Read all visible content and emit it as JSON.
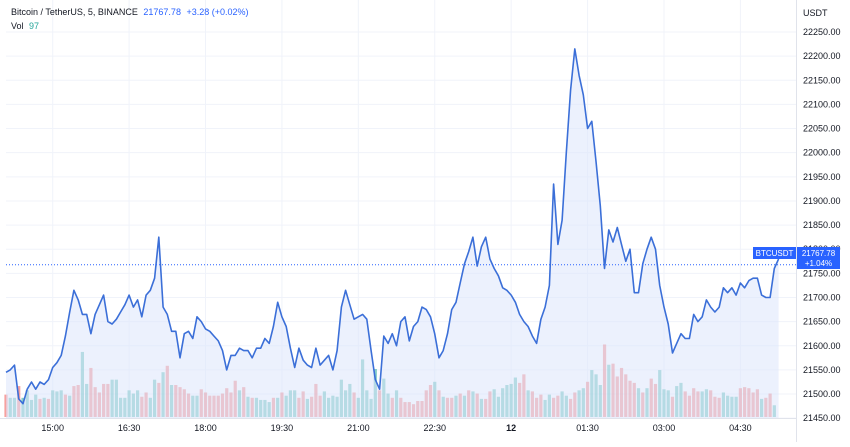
{
  "legend": {
    "symbol": "Bitcoin / TetherUS, 5, BINANCE",
    "last": "21767.78",
    "change": "+3.28 (+0.02%)",
    "vol_label": "Vol",
    "vol_value": "97"
  },
  "price_tag": {
    "symbol": "BTCUSDT",
    "price": "21767.78",
    "change": "+1.04%"
  },
  "colors": {
    "line": "#3b6fd8",
    "fill": "#dce5fb",
    "up": "#26a69a",
    "down": "#ef5350",
    "tag": "#2962ff",
    "grid": "#f0f3fa"
  },
  "chart_data": {
    "type": "line",
    "yunit": "USDT",
    "ylim": [
      21420,
      22285
    ],
    "yticks": [
      21450,
      21500,
      21550,
      21600,
      21650,
      21700,
      21750,
      21800,
      21850,
      21900,
      21950,
      22000,
      22050,
      22100,
      22150,
      22200,
      22250
    ],
    "xticks": [
      "15:00",
      "16:30",
      "18:00",
      "19:30",
      "21:00",
      "22:30",
      "12",
      "01:30",
      "03:00",
      "04:30"
    ],
    "xtick_index": [
      11,
      29,
      47,
      65,
      83,
      101,
      119,
      137,
      155,
      173
    ],
    "price": [
      21545,
      21550,
      21560,
      21490,
      21480,
      21510,
      21525,
      21510,
      21525,
      21520,
      21530,
      21555,
      21565,
      21580,
      21620,
      21670,
      21715,
      21695,
      21665,
      21665,
      21625,
      21665,
      21685,
      21705,
      21650,
      21645,
      21655,
      21670,
      21685,
      21705,
      21680,
      21695,
      21660,
      21705,
      21715,
      21740,
      21825,
      21680,
      21665,
      21630,
      21630,
      21575,
      21625,
      21630,
      21615,
      21660,
      21650,
      21635,
      21630,
      21620,
      21610,
      21590,
      21550,
      21580,
      21580,
      21595,
      21590,
      21590,
      21575,
      21595,
      21595,
      21615,
      21605,
      21640,
      21690,
      21660,
      21640,
      21595,
      21555,
      21595,
      21570,
      21560,
      21555,
      21595,
      21560,
      21570,
      21580,
      21550,
      21590,
      21680,
      21715,
      21685,
      21655,
      21660,
      21665,
      21655,
      21590,
      21530,
      21510,
      21620,
      21605,
      21625,
      21600,
      21650,
      21660,
      21610,
      21640,
      21650,
      21680,
      21675,
      21660,
      21625,
      21575,
      21590,
      21625,
      21675,
      21690,
      21730,
      21770,
      21795,
      21825,
      21765,
      21805,
      21825,
      21780,
      21760,
      21745,
      21720,
      21715,
      21705,
      21690,
      21665,
      21650,
      21640,
      21620,
      21605,
      21655,
      21680,
      21725,
      21935,
      21810,
      21860,
      22000,
      22130,
      22215,
      22160,
      22120,
      22050,
      22065,
      21980,
      21890,
      21760,
      21840,
      21815,
      21845,
      21810,
      21775,
      21800,
      21710,
      21710,
      21770,
      21800,
      21825,
      21800,
      21725,
      21680,
      21645,
      21585,
      21605,
      21625,
      21615,
      21615,
      21665,
      21650,
      21660,
      21695,
      21680,
      21670,
      21680,
      21720,
      21710,
      21720,
      21705,
      21730,
      21720,
      21735,
      21740,
      21740,
      21705,
      21700,
      21700,
      21760,
      21780
    ],
    "volume": [
      {
        "v": 21,
        "up": false
      },
      {
        "v": 18,
        "up": true
      },
      {
        "v": 18,
        "up": true
      },
      {
        "v": 29,
        "up": false
      },
      {
        "v": 18,
        "up": true
      },
      {
        "v": 25,
        "up": true
      },
      {
        "v": 16,
        "up": true
      },
      {
        "v": 21,
        "up": true
      },
      {
        "v": 17,
        "up": false
      },
      {
        "v": 18,
        "up": true
      },
      {
        "v": 17,
        "up": false
      },
      {
        "v": 25,
        "up": true
      },
      {
        "v": 24,
        "up": true
      },
      {
        "v": 25,
        "up": true
      },
      {
        "v": 21,
        "up": false
      },
      {
        "v": 20,
        "up": true
      },
      {
        "v": 29,
        "up": false
      },
      {
        "v": 30,
        "up": false
      },
      {
        "v": 61,
        "up": true
      },
      {
        "v": 31,
        "up": true
      },
      {
        "v": 46,
        "up": false
      },
      {
        "v": 28,
        "up": false
      },
      {
        "v": 23,
        "up": false
      },
      {
        "v": 31,
        "up": false
      },
      {
        "v": 31,
        "up": false
      },
      {
        "v": 35,
        "up": true
      },
      {
        "v": 35,
        "up": true
      },
      {
        "v": 18,
        "up": true
      },
      {
        "v": 18,
        "up": true
      },
      {
        "v": 25,
        "up": true
      },
      {
        "v": 22,
        "up": true
      },
      {
        "v": 25,
        "up": true
      },
      {
        "v": 19,
        "up": false
      },
      {
        "v": 23,
        "up": false
      },
      {
        "v": 18,
        "up": true
      },
      {
        "v": 35,
        "up": true
      },
      {
        "v": 32,
        "up": false
      },
      {
        "v": 42,
        "up": true
      },
      {
        "v": 48,
        "up": false
      },
      {
        "v": 30,
        "up": true
      },
      {
        "v": 30,
        "up": false
      },
      {
        "v": 28,
        "up": false
      },
      {
        "v": 26,
        "up": false
      },
      {
        "v": 22,
        "up": false
      },
      {
        "v": 20,
        "up": true
      },
      {
        "v": 20,
        "up": true
      },
      {
        "v": 26,
        "up": false
      },
      {
        "v": 23,
        "up": false
      },
      {
        "v": 20,
        "up": false
      },
      {
        "v": 20,
        "up": false
      },
      {
        "v": 20,
        "up": false
      },
      {
        "v": 22,
        "up": false
      },
      {
        "v": 27,
        "up": false
      },
      {
        "v": 23,
        "up": false
      },
      {
        "v": 34,
        "up": false
      },
      {
        "v": 25,
        "up": true
      },
      {
        "v": 28,
        "up": false
      },
      {
        "v": 19,
        "up": true
      },
      {
        "v": 18,
        "up": false
      },
      {
        "v": 18,
        "up": true
      },
      {
        "v": 16,
        "up": true
      },
      {
        "v": 16,
        "up": true
      },
      {
        "v": 14,
        "up": true
      },
      {
        "v": 18,
        "up": false
      },
      {
        "v": 18,
        "up": true
      },
      {
        "v": 23,
        "up": false
      },
      {
        "v": 20,
        "up": true
      },
      {
        "v": 25,
        "up": true
      },
      {
        "v": 25,
        "up": true
      },
      {
        "v": 18,
        "up": false
      },
      {
        "v": 24,
        "up": false
      },
      {
        "v": 17,
        "up": true
      },
      {
        "v": 19,
        "up": false
      },
      {
        "v": 31,
        "up": false
      },
      {
        "v": 20,
        "up": false
      },
      {
        "v": 24,
        "up": true
      },
      {
        "v": 18,
        "up": true
      },
      {
        "v": 20,
        "up": true
      },
      {
        "v": 19,
        "up": true
      },
      {
        "v": 35,
        "up": true
      },
      {
        "v": 25,
        "up": true
      },
      {
        "v": 31,
        "up": true
      },
      {
        "v": 23,
        "up": false
      },
      {
        "v": 18,
        "up": true
      },
      {
        "v": 54,
        "up": true
      },
      {
        "v": 25,
        "up": true
      },
      {
        "v": 17,
        "up": true
      },
      {
        "v": 45,
        "up": true
      },
      {
        "v": 25,
        "up": false
      },
      {
        "v": 36,
        "up": true
      },
      {
        "v": 22,
        "up": true
      },
      {
        "v": 18,
        "up": false
      },
      {
        "v": 25,
        "up": true
      },
      {
        "v": 18,
        "up": false
      },
      {
        "v": 14,
        "up": false
      },
      {
        "v": 14,
        "up": false
      },
      {
        "v": 12,
        "up": false
      },
      {
        "v": 15,
        "up": false
      },
      {
        "v": 15,
        "up": false
      },
      {
        "v": 25,
        "up": false
      },
      {
        "v": 30,
        "up": false
      },
      {
        "v": 33,
        "up": true
      },
      {
        "v": 25,
        "up": false
      },
      {
        "v": 19,
        "up": true
      },
      {
        "v": 18,
        "up": false
      },
      {
        "v": 18,
        "up": false
      },
      {
        "v": 20,
        "up": true
      },
      {
        "v": 22,
        "up": false
      },
      {
        "v": 20,
        "up": true
      },
      {
        "v": 25,
        "up": false
      },
      {
        "v": 24,
        "up": true
      },
      {
        "v": 22,
        "up": false
      },
      {
        "v": 17,
        "up": true
      },
      {
        "v": 17,
        "up": false
      },
      {
        "v": 24,
        "up": false
      },
      {
        "v": 26,
        "up": true
      },
      {
        "v": 19,
        "up": true
      },
      {
        "v": 27,
        "up": true
      },
      {
        "v": 30,
        "up": true
      },
      {
        "v": 31,
        "up": true
      },
      {
        "v": 37,
        "up": true
      },
      {
        "v": 32,
        "up": false
      },
      {
        "v": 40,
        "up": false
      },
      {
        "v": 25,
        "up": true
      },
      {
        "v": 24,
        "up": false
      },
      {
        "v": 18,
        "up": false
      },
      {
        "v": 21,
        "up": false
      },
      {
        "v": 16,
        "up": true
      },
      {
        "v": 21,
        "up": true
      },
      {
        "v": 18,
        "up": false
      },
      {
        "v": 20,
        "up": false
      },
      {
        "v": 24,
        "up": true
      },
      {
        "v": 20,
        "up": true
      },
      {
        "v": 17,
        "up": false
      },
      {
        "v": 23,
        "up": false
      },
      {
        "v": 25,
        "up": true
      },
      {
        "v": 27,
        "up": true
      },
      {
        "v": 33,
        "up": false
      },
      {
        "v": 44,
        "up": true
      },
      {
        "v": 40,
        "up": true
      },
      {
        "v": 30,
        "up": true
      },
      {
        "v": 68,
        "up": false
      },
      {
        "v": 49,
        "up": true
      },
      {
        "v": 50,
        "up": false
      },
      {
        "v": 38,
        "up": false
      },
      {
        "v": 46,
        "up": false
      },
      {
        "v": 40,
        "up": false
      },
      {
        "v": 34,
        "up": false
      },
      {
        "v": 32,
        "up": false
      },
      {
        "v": 27,
        "up": true
      },
      {
        "v": 23,
        "up": false
      },
      {
        "v": 27,
        "up": true
      },
      {
        "v": 36,
        "up": false
      },
      {
        "v": 31,
        "up": false
      },
      {
        "v": 44,
        "up": true
      },
      {
        "v": 26,
        "up": true
      },
      {
        "v": 25,
        "up": true
      },
      {
        "v": 19,
        "up": false
      },
      {
        "v": 29,
        "up": true
      },
      {
        "v": 32,
        "up": true
      },
      {
        "v": 24,
        "up": false
      },
      {
        "v": 20,
        "up": false
      },
      {
        "v": 27,
        "up": false
      },
      {
        "v": 24,
        "up": false
      },
      {
        "v": 24,
        "up": true
      },
      {
        "v": 26,
        "up": true
      },
      {
        "v": 25,
        "up": false
      },
      {
        "v": 19,
        "up": false
      },
      {
        "v": 18,
        "up": false
      },
      {
        "v": 23,
        "up": true
      },
      {
        "v": 20,
        "up": true
      },
      {
        "v": 19,
        "up": true
      },
      {
        "v": 19,
        "up": true
      },
      {
        "v": 27,
        "up": false
      },
      {
        "v": 28,
        "up": false
      },
      {
        "v": 27,
        "up": false
      },
      {
        "v": 23,
        "up": false
      },
      {
        "v": 26,
        "up": false
      },
      {
        "v": 17,
        "up": true
      },
      {
        "v": 18,
        "up": false
      },
      {
        "v": 22,
        "up": false
      },
      {
        "v": 11,
        "up": true
      }
    ],
    "vol_max": 75,
    "last_price": 21767.78,
    "grid": true
  }
}
